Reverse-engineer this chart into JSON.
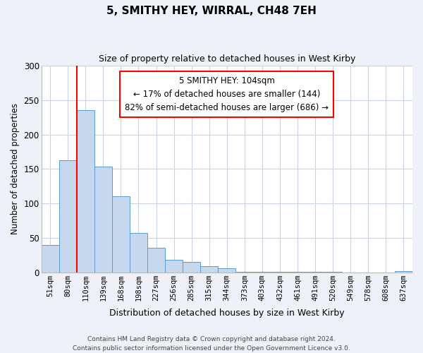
{
  "title": "5, SMITHY HEY, WIRRAL, CH48 7EH",
  "subtitle": "Size of property relative to detached houses in West Kirby",
  "xlabel": "Distribution of detached houses by size in West Kirby",
  "ylabel": "Number of detached properties",
  "bar_labels": [
    "51sqm",
    "80sqm",
    "110sqm",
    "139sqm",
    "168sqm",
    "198sqm",
    "227sqm",
    "256sqm",
    "285sqm",
    "315sqm",
    "344sqm",
    "373sqm",
    "403sqm",
    "432sqm",
    "461sqm",
    "491sqm",
    "520sqm",
    "549sqm",
    "578sqm",
    "608sqm",
    "637sqm"
  ],
  "bar_values": [
    40,
    163,
    235,
    153,
    110,
    57,
    35,
    18,
    15,
    9,
    6,
    1,
    1,
    1,
    1,
    1,
    1,
    0,
    0,
    0,
    2
  ],
  "bar_color": "#c5d8ed",
  "bar_edge_color": "#5b9bd5",
  "red_line_index": 2,
  "annotation_line1": "5 SMITHY HEY: 104sqm",
  "annotation_line2": "← 17% of detached houses are smaller (144)",
  "annotation_line3": "82% of semi-detached houses are larger (686) →",
  "annotation_box_color": "white",
  "annotation_box_edge_color": "red",
  "ylim": [
    0,
    300
  ],
  "yticks": [
    0,
    50,
    100,
    150,
    200,
    250,
    300
  ],
  "footer_line1": "Contains HM Land Registry data © Crown copyright and database right 2024.",
  "footer_line2": "Contains public sector information licensed under the Open Government Licence v3.0.",
  "background_color": "#eef2f8",
  "plot_bg_color": "white",
  "grid_color": "#c8d4e4"
}
